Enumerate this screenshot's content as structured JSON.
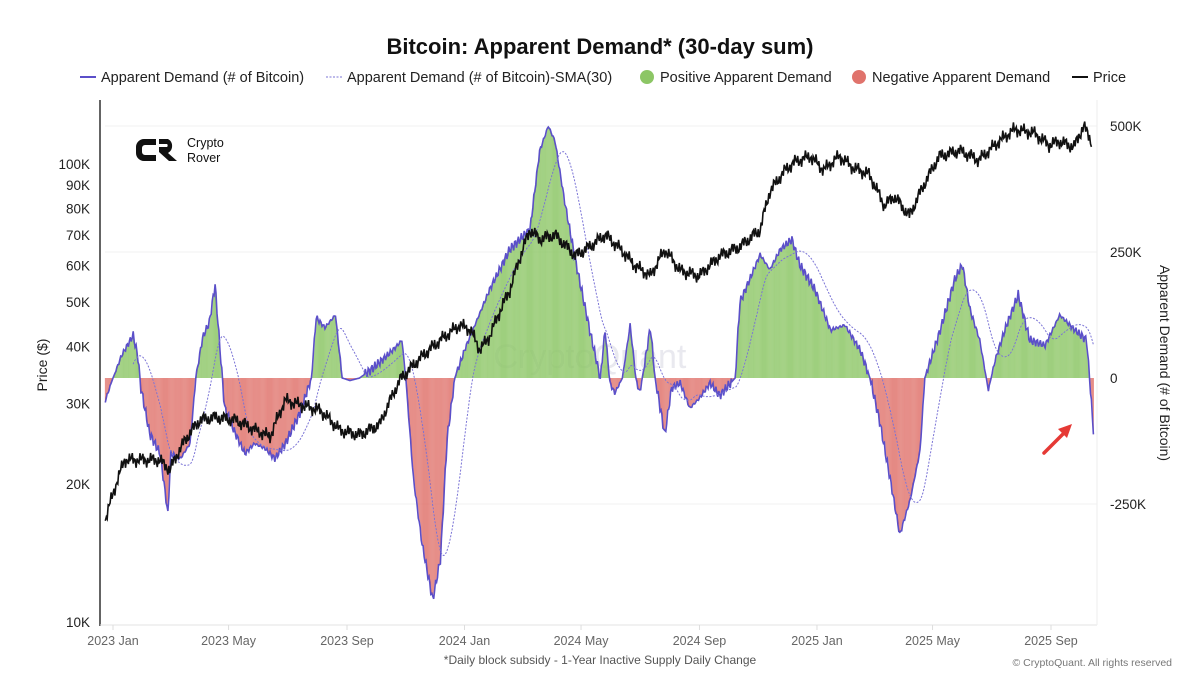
{
  "chart_data": {
    "type": "line",
    "title": "Bitcoin: Apparent Demand* (30-day sum)",
    "footnote": "*Daily block subsidy - 1-Year Inactive Supply Daily Change",
    "copyright": "© CryptoQuant. All rights reserved",
    "watermark": "CryptoQuant",
    "logo_text": [
      "Crypto",
      "Rover"
    ],
    "legend": [
      {
        "label": "Apparent Demand (# of Bitcoin)",
        "symbol": "line",
        "color": "#5b4fc9"
      },
      {
        "label": "Apparent Demand (# of Bitcoin)-SMA(30)",
        "symbol": "dotted",
        "color": "#7b74d6"
      },
      {
        "label": "Positive Apparent Demand",
        "symbol": "dot",
        "color": "#8cc665"
      },
      {
        "label": "Negative Apparent Demand",
        "symbol": "dot",
        "color": "#e0736c"
      },
      {
        "label": "Price",
        "symbol": "line",
        "color": "#111111"
      }
    ],
    "legend_position": "top",
    "x_axis": {
      "type": "date",
      "range": [
        "2022-12-24",
        "2025-10-16"
      ],
      "ticks": [
        {
          "date": "2023-01-01",
          "label": "2023 Jan"
        },
        {
          "date": "2023-05-01",
          "label": "2023 May"
        },
        {
          "date": "2023-09-01",
          "label": "2023 Sep"
        },
        {
          "date": "2024-01-01",
          "label": "2024 Jan"
        },
        {
          "date": "2024-05-01",
          "label": "2024 May"
        },
        {
          "date": "2024-09-01",
          "label": "2024 Sep"
        },
        {
          "date": "2025-01-01",
          "label": "2025 Jan"
        },
        {
          "date": "2025-05-01",
          "label": "2025 May"
        },
        {
          "date": "2025-09-01",
          "label": "2025 Sep"
        }
      ]
    },
    "y_left": {
      "label": "Price ($)",
      "scale": "log",
      "range": [
        10000,
        130000
      ],
      "ticks": [
        {
          "value": 10000,
          "label": "10K"
        },
        {
          "value": 20000,
          "label": "20K"
        },
        {
          "value": 30000,
          "label": "30K"
        },
        {
          "value": 40000,
          "label": "40K"
        },
        {
          "value": 50000,
          "label": "50K"
        },
        {
          "value": 60000,
          "label": "60K"
        },
        {
          "value": 70000,
          "label": "70K"
        },
        {
          "value": 80000,
          "label": "80K"
        },
        {
          "value": 90000,
          "label": "90K"
        },
        {
          "value": 100000,
          "label": "100K"
        }
      ]
    },
    "y_right": {
      "label": "Apparent Demand (# of Bitcoin)",
      "scale": "linear",
      "range": [
        -490000,
        550000
      ],
      "ticks": [
        {
          "value": 500000,
          "label": "500K"
        },
        {
          "value": 250000,
          "label": "250K"
        },
        {
          "value": 0,
          "label": "0"
        },
        {
          "value": -250000,
          "label": "-250K"
        }
      ]
    },
    "grid": "horizontal at right-axis ticks",
    "annotation": {
      "type": "red-arrow",
      "points_to": "2025-10-15"
    },
    "series": [
      {
        "name": "Apparent Demand (# of Bitcoin)",
        "axis": "right",
        "unit": "thousand BTC",
        "points": [
          [
            "2022-12-24",
            -45
          ],
          [
            "2023-01-01",
            0
          ],
          [
            "2023-01-10",
            45
          ],
          [
            "2023-01-22",
            85
          ],
          [
            "2023-01-27",
            40
          ],
          [
            "2023-01-30",
            -20
          ],
          [
            "2023-02-08",
            -110
          ],
          [
            "2023-02-19",
            -150
          ],
          [
            "2023-02-27",
            -270
          ],
          [
            "2023-03-02",
            -150
          ],
          [
            "2023-03-12",
            -160
          ],
          [
            "2023-03-22",
            -130
          ],
          [
            "2023-03-28",
            0
          ],
          [
            "2023-04-04",
            80
          ],
          [
            "2023-04-11",
            110
          ],
          [
            "2023-04-17",
            185
          ],
          [
            "2023-04-22",
            60
          ],
          [
            "2023-04-27",
            -60
          ],
          [
            "2023-05-08",
            -110
          ],
          [
            "2023-05-18",
            -150
          ],
          [
            "2023-05-28",
            -130
          ],
          [
            "2023-06-08",
            -140
          ],
          [
            "2023-06-18",
            -160
          ],
          [
            "2023-06-29",
            -130
          ],
          [
            "2023-07-14",
            -70
          ],
          [
            "2023-07-26",
            0
          ],
          [
            "2023-07-31",
            120
          ],
          [
            "2023-08-09",
            100
          ],
          [
            "2023-08-20",
            125
          ],
          [
            "2023-08-27",
            0
          ],
          [
            "2023-09-04",
            -5
          ],
          [
            "2023-09-14",
            0
          ],
          [
            "2023-09-25",
            15
          ],
          [
            "2023-10-10",
            40
          ],
          [
            "2023-10-21",
            60
          ],
          [
            "2023-10-28",
            75
          ],
          [
            "2023-11-01",
            0
          ],
          [
            "2023-11-09",
            -200
          ],
          [
            "2023-11-18",
            -330
          ],
          [
            "2023-11-29",
            -440
          ],
          [
            "2023-12-07",
            -360
          ],
          [
            "2023-12-14",
            -120
          ],
          [
            "2023-12-22",
            0
          ],
          [
            "2024-01-02",
            60
          ],
          [
            "2024-01-27",
            175
          ],
          [
            "2024-02-17",
            255
          ],
          [
            "2024-03-09",
            295
          ],
          [
            "2024-03-19",
            450
          ],
          [
            "2024-03-28",
            500
          ],
          [
            "2024-04-04",
            470
          ],
          [
            "2024-04-14",
            350
          ],
          [
            "2024-04-25",
            235
          ],
          [
            "2024-05-10",
            95
          ],
          [
            "2024-05-21",
            0
          ],
          [
            "2024-05-26",
            95
          ],
          [
            "2024-05-31",
            -10
          ],
          [
            "2024-06-05",
            -30
          ],
          [
            "2024-06-13",
            0
          ],
          [
            "2024-06-21",
            105
          ],
          [
            "2024-06-27",
            0
          ],
          [
            "2024-07-01",
            -30
          ],
          [
            "2024-07-12",
            100
          ],
          [
            "2024-07-17",
            0
          ],
          [
            "2024-07-27",
            -113
          ],
          [
            "2024-08-03",
            -20
          ],
          [
            "2024-08-12",
            -10
          ],
          [
            "2024-08-22",
            -60
          ],
          [
            "2024-09-01",
            -40
          ],
          [
            "2024-09-12",
            -10
          ],
          [
            "2024-09-22",
            -35
          ],
          [
            "2024-10-08",
            0
          ],
          [
            "2024-10-13",
            150
          ],
          [
            "2024-10-23",
            195
          ],
          [
            "2024-11-03",
            245
          ],
          [
            "2024-11-13",
            215
          ],
          [
            "2024-11-24",
            255
          ],
          [
            "2024-12-06",
            275
          ],
          [
            "2024-12-14",
            225
          ],
          [
            "2024-12-30",
            175
          ],
          [
            "2025-01-15",
            95
          ],
          [
            "2025-01-30",
            105
          ],
          [
            "2025-02-15",
            55
          ],
          [
            "2025-02-25",
            0
          ],
          [
            "2025-03-07",
            -85
          ],
          [
            "2025-03-18",
            -200
          ],
          [
            "2025-03-28",
            -311
          ],
          [
            "2025-04-08",
            -240
          ],
          [
            "2025-04-18",
            -145
          ],
          [
            "2025-04-23",
            0
          ],
          [
            "2025-05-09",
            95
          ],
          [
            "2025-05-24",
            195
          ],
          [
            "2025-06-01",
            225
          ],
          [
            "2025-06-09",
            135
          ],
          [
            "2025-06-19",
            75
          ],
          [
            "2025-06-28",
            -24
          ],
          [
            "2025-07-05",
            35
          ],
          [
            "2025-07-15",
            95
          ],
          [
            "2025-07-29",
            165
          ],
          [
            "2025-08-10",
            75
          ],
          [
            "2025-08-26",
            65
          ],
          [
            "2025-09-10",
            125
          ],
          [
            "2025-09-26",
            95
          ],
          [
            "2025-10-08",
            75
          ],
          [
            "2025-10-11",
            0
          ],
          [
            "2025-10-15",
            -103
          ]
        ]
      },
      {
        "name": "Apparent Demand (# of Bitcoin)-SMA(30)",
        "axis": "right",
        "derived": "30-day simple moving average of Apparent Demand"
      },
      {
        "name": "Price",
        "axis": "left",
        "unit": "USD",
        "points": [
          [
            "2022-12-24",
            16700
          ],
          [
            "2023-01-13",
            22600
          ],
          [
            "2023-02-18",
            22600
          ],
          [
            "2023-03-01",
            21500
          ],
          [
            "2023-03-17",
            25000
          ],
          [
            "2023-04-01",
            27600
          ],
          [
            "2023-04-17",
            28000
          ],
          [
            "2023-05-08",
            27600
          ],
          [
            "2023-05-28",
            26300
          ],
          [
            "2023-06-13",
            25400
          ],
          [
            "2023-06-29",
            30500
          ],
          [
            "2023-07-14",
            29800
          ],
          [
            "2023-08-04",
            29000
          ],
          [
            "2023-08-25",
            26200
          ],
          [
            "2023-09-14",
            25600
          ],
          [
            "2023-10-05",
            27000
          ],
          [
            "2023-10-26",
            33800
          ],
          [
            "2023-11-16",
            37700
          ],
          [
            "2023-12-07",
            41300
          ],
          [
            "2023-12-27",
            44500
          ],
          [
            "2024-01-07",
            43500
          ],
          [
            "2024-01-17",
            39300
          ],
          [
            "2024-01-27",
            42000
          ],
          [
            "2024-02-17",
            53000
          ],
          [
            "2024-03-09",
            71800
          ],
          [
            "2024-03-19",
            68500
          ],
          [
            "2024-04-04",
            70000
          ],
          [
            "2024-04-25",
            63000
          ],
          [
            "2024-05-10",
            66000
          ],
          [
            "2024-05-26",
            70000
          ],
          [
            "2024-06-10",
            65500
          ],
          [
            "2024-06-26",
            60000
          ],
          [
            "2024-07-12",
            57000
          ],
          [
            "2024-07-27",
            65000
          ],
          [
            "2024-08-12",
            58500
          ],
          [
            "2024-09-01",
            57000
          ],
          [
            "2024-09-22",
            63000
          ],
          [
            "2024-10-13",
            66000
          ],
          [
            "2024-11-03",
            71800
          ],
          [
            "2024-11-13",
            87000
          ],
          [
            "2024-11-29",
            97000
          ],
          [
            "2024-12-09",
            101000
          ],
          [
            "2024-12-25",
            104000
          ],
          [
            "2025-01-08",
            97000
          ],
          [
            "2025-01-24",
            104000
          ],
          [
            "2025-02-08",
            98000
          ],
          [
            "2025-02-24",
            95000
          ],
          [
            "2025-03-12",
            81000
          ],
          [
            "2025-03-22",
            85000
          ],
          [
            "2025-04-07",
            77000
          ],
          [
            "2025-04-22",
            90000
          ],
          [
            "2025-05-08",
            104000
          ],
          [
            "2025-05-29",
            107000
          ],
          [
            "2025-06-18",
            102000
          ],
          [
            "2025-07-09",
            112000
          ],
          [
            "2025-07-25",
            119000
          ],
          [
            "2025-08-14",
            117000
          ],
          [
            "2025-08-30",
            110000
          ],
          [
            "2025-09-09",
            112000
          ],
          [
            "2025-09-25",
            109000
          ],
          [
            "2025-10-05",
            121000
          ],
          [
            "2025-10-13",
            112000
          ]
        ]
      }
    ]
  }
}
